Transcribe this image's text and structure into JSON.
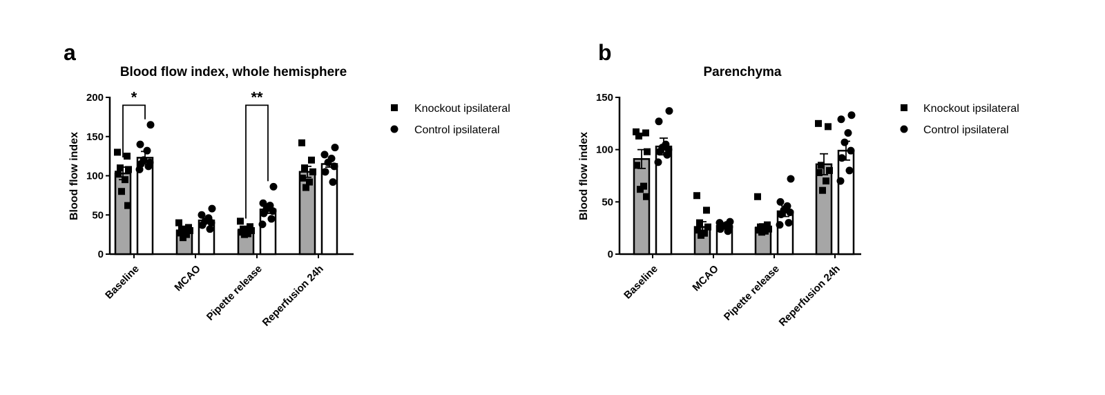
{
  "chart_data": [
    {
      "type": "bar",
      "panel_label": "a",
      "title": "Blood flow index, whole hemisphere",
      "xlabel": "",
      "ylabel": "Blood flow index",
      "ylim": [
        0,
        200
      ],
      "yticks": [
        "0",
        "50",
        "100",
        "150",
        "200"
      ],
      "categories": [
        "Baseline",
        "MCAO",
        "Pipette release",
        "Reperfusion 24h"
      ],
      "legend_position": "right",
      "series": [
        {
          "name": "Knockout ipsilateral",
          "marker": "square",
          "bar_color": "#a6a6a6",
          "values": [
            103,
            30,
            30,
            105
          ],
          "sem": [
            8,
            3,
            3,
            7
          ],
          "points": [
            [
              130,
              125,
              110,
              108,
              102,
              95,
              80,
              62
            ],
            [
              40,
              34,
              32,
              30,
              27,
              25,
              21
            ],
            [
              42,
              35,
              32,
              30,
              28,
              26,
              25
            ]
          ],
          "points_last": [
            142,
            120,
            110,
            105,
            97,
            92,
            85
          ]
        },
        {
          "name": "Control ipsilateral",
          "marker": "circle",
          "bar_color": "#ffffff",
          "values": [
            123,
            43,
            57,
            115
          ],
          "sem": [
            8,
            3,
            5,
            4
          ],
          "points": [
            [
              165,
              140,
              132,
              120,
              117,
              115,
              112,
              108
            ],
            [
              58,
              50,
              46,
              42,
              40,
              37,
              32
            ],
            [
              86,
              65,
              62,
              58,
              55,
              52,
              45,
              38
            ]
          ],
          "points_last": [
            136,
            127,
            122,
            117,
            112,
            105,
            92
          ]
        }
      ],
      "significance": [
        {
          "category": "Baseline",
          "label": "*",
          "bracket_y": 190
        },
        {
          "category": "Pipette release",
          "label": "**",
          "bracket_y": 190
        }
      ]
    },
    {
      "type": "bar",
      "panel_label": "b",
      "title": "Parenchyma",
      "xlabel": "",
      "ylabel": "Blood flow index",
      "ylim": [
        0,
        150
      ],
      "yticks": [
        "0",
        "50",
        "100",
        "150"
      ],
      "categories": [
        "Baseline",
        "MCAO",
        "Pipette release",
        "Reperfusion 24h"
      ],
      "legend_position": "right",
      "series": [
        {
          "name": "Knockout ipsilateral",
          "marker": "square",
          "bar_color": "#a6a6a6",
          "values": [
            91,
            26,
            25,
            86
          ],
          "sem": [
            9,
            5,
            4,
            10
          ],
          "points": [
            [
              117,
              116,
              113,
              98,
              85,
              65,
              62,
              55
            ],
            [
              56,
              42,
              30,
              26,
              23,
              20,
              18
            ],
            [
              55,
              28,
              26,
              24,
              23,
              22,
              21
            ]
          ],
          "points_last": [
            125,
            122,
            85,
            80,
            78,
            70,
            61
          ]
        },
        {
          "name": "Control ipsilateral",
          "marker": "circle",
          "bar_color": "#ffffff",
          "values": [
            103,
            27,
            41,
            99
          ],
          "sem": [
            8,
            3,
            5,
            9
          ],
          "points": [
            [
              137,
              127,
              105,
              102,
              100,
              98,
              95,
              88
            ],
            [
              31,
              30,
              28,
              27,
              26,
              24,
              22
            ],
            [
              72,
              50,
              46,
              42,
              40,
              38,
              30,
              28
            ]
          ],
          "points_last": [
            133,
            129,
            116,
            107,
            99,
            92,
            80,
            70
          ]
        }
      ],
      "significance": []
    }
  ]
}
